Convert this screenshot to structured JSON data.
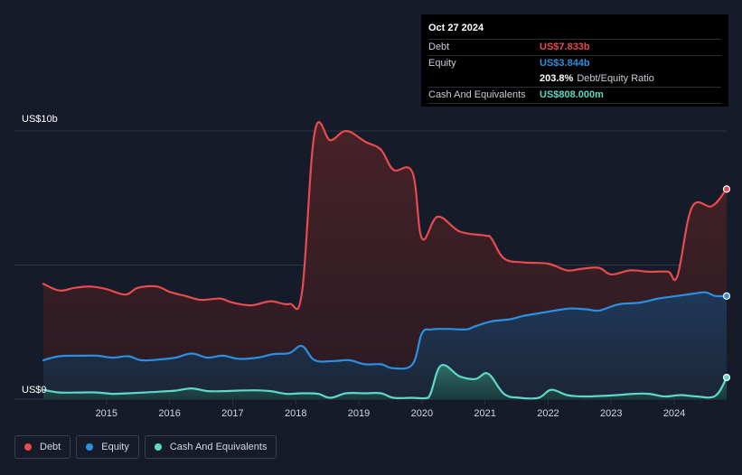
{
  "colors": {
    "background": "#151b28",
    "debt": "#e64b4e",
    "equity": "#2d8fe0",
    "cash": "#5ed8c4",
    "grid": "#2f3542",
    "axis_text": "#d4d7dd"
  },
  "tooltip": {
    "date": "Oct 27 2024",
    "debt_label": "Debt",
    "debt_value": "US$7.833b",
    "equity_label": "Equity",
    "equity_value": "US$3.844b",
    "ratio_value": "203.8%",
    "ratio_label": "Debt/Equity Ratio",
    "cash_label": "Cash And Equivalents",
    "cash_value": "US$808.000m"
  },
  "legend": {
    "debt": "Debt",
    "equity": "Equity",
    "cash": "Cash And Equivalents"
  },
  "chart_data": {
    "type": "area",
    "title": "",
    "ylabel": "",
    "xlabel": "",
    "ylim": [
      0,
      10
    ],
    "y_unit": "US$ billions",
    "y_tick_labels": [
      {
        "value": 10,
        "label": "US$10b"
      },
      {
        "value": 0,
        "label": "US$0"
      }
    ],
    "x_ticks": [
      2015,
      2016,
      2017,
      2018,
      2019,
      2020,
      2021,
      2022,
      2023,
      2024
    ],
    "xlim": [
      2014.0,
      2024.83
    ],
    "series": [
      {
        "name": "Debt",
        "key": "debt",
        "points": [
          [
            2014.0,
            4.3
          ],
          [
            2014.25,
            4.05
          ],
          [
            2014.5,
            4.15
          ],
          [
            2014.75,
            4.2
          ],
          [
            2015.0,
            4.1
          ],
          [
            2015.3,
            3.9
          ],
          [
            2015.5,
            4.15
          ],
          [
            2015.8,
            4.2
          ],
          [
            2016.0,
            4.0
          ],
          [
            2016.25,
            3.85
          ],
          [
            2016.5,
            3.7
          ],
          [
            2016.8,
            3.75
          ],
          [
            2017.0,
            3.6
          ],
          [
            2017.3,
            3.5
          ],
          [
            2017.6,
            3.65
          ],
          [
            2017.9,
            3.55
          ],
          [
            2018.1,
            4.0
          ],
          [
            2018.3,
            9.95
          ],
          [
            2018.55,
            9.65
          ],
          [
            2018.8,
            10.0
          ],
          [
            2019.1,
            9.6
          ],
          [
            2019.35,
            9.3
          ],
          [
            2019.55,
            8.55
          ],
          [
            2019.85,
            8.45
          ],
          [
            2020.0,
            6.0
          ],
          [
            2020.25,
            6.8
          ],
          [
            2020.6,
            6.25
          ],
          [
            2021.0,
            6.1
          ],
          [
            2021.1,
            6.0
          ],
          [
            2021.3,
            5.25
          ],
          [
            2021.6,
            5.1
          ],
          [
            2022.0,
            5.05
          ],
          [
            2022.3,
            4.8
          ],
          [
            2022.5,
            4.85
          ],
          [
            2022.8,
            4.9
          ],
          [
            2023.0,
            4.65
          ],
          [
            2023.3,
            4.8
          ],
          [
            2023.6,
            4.75
          ],
          [
            2023.9,
            4.75
          ],
          [
            2024.05,
            4.6
          ],
          [
            2024.28,
            7.15
          ],
          [
            2024.6,
            7.2
          ],
          [
            2024.83,
            7.833
          ]
        ]
      },
      {
        "name": "Equity",
        "key": "equity",
        "points": [
          [
            2014.0,
            1.45
          ],
          [
            2014.25,
            1.6
          ],
          [
            2014.6,
            1.62
          ],
          [
            2014.85,
            1.62
          ],
          [
            2015.1,
            1.55
          ],
          [
            2015.35,
            1.6
          ],
          [
            2015.55,
            1.45
          ],
          [
            2015.85,
            1.48
          ],
          [
            2016.1,
            1.55
          ],
          [
            2016.35,
            1.7
          ],
          [
            2016.6,
            1.55
          ],
          [
            2016.85,
            1.62
          ],
          [
            2017.1,
            1.5
          ],
          [
            2017.4,
            1.55
          ],
          [
            2017.65,
            1.68
          ],
          [
            2017.9,
            1.72
          ],
          [
            2018.1,
            1.98
          ],
          [
            2018.3,
            1.45
          ],
          [
            2018.6,
            1.42
          ],
          [
            2018.85,
            1.45
          ],
          [
            2019.1,
            1.3
          ],
          [
            2019.35,
            1.3
          ],
          [
            2019.55,
            1.15
          ],
          [
            2019.85,
            1.3
          ],
          [
            2020.0,
            2.45
          ],
          [
            2020.15,
            2.6
          ],
          [
            2020.4,
            2.62
          ],
          [
            2020.7,
            2.6
          ],
          [
            2020.85,
            2.72
          ],
          [
            2021.1,
            2.9
          ],
          [
            2021.4,
            2.98
          ],
          [
            2021.6,
            3.1
          ],
          [
            2021.85,
            3.2
          ],
          [
            2022.1,
            3.3
          ],
          [
            2022.35,
            3.38
          ],
          [
            2022.6,
            3.35
          ],
          [
            2022.8,
            3.3
          ],
          [
            2023.0,
            3.45
          ],
          [
            2023.15,
            3.55
          ],
          [
            2023.45,
            3.6
          ],
          [
            2023.75,
            3.75
          ],
          [
            2024.05,
            3.85
          ],
          [
            2024.35,
            3.95
          ],
          [
            2024.5,
            3.98
          ],
          [
            2024.65,
            3.85
          ],
          [
            2024.83,
            3.844
          ]
        ]
      },
      {
        "name": "Cash And Equivalents",
        "key": "cash",
        "points": [
          [
            2014.0,
            0.35
          ],
          [
            2014.25,
            0.25
          ],
          [
            2014.6,
            0.25
          ],
          [
            2014.85,
            0.25
          ],
          [
            2015.1,
            0.2
          ],
          [
            2015.35,
            0.22
          ],
          [
            2015.6,
            0.25
          ],
          [
            2015.85,
            0.28
          ],
          [
            2016.1,
            0.32
          ],
          [
            2016.35,
            0.4
          ],
          [
            2016.6,
            0.3
          ],
          [
            2016.85,
            0.3
          ],
          [
            2017.1,
            0.32
          ],
          [
            2017.35,
            0.33
          ],
          [
            2017.6,
            0.3
          ],
          [
            2017.85,
            0.2
          ],
          [
            2018.1,
            0.22
          ],
          [
            2018.35,
            0.2
          ],
          [
            2018.55,
            0.05
          ],
          [
            2018.8,
            0.22
          ],
          [
            2019.1,
            0.22
          ],
          [
            2019.35,
            0.22
          ],
          [
            2019.55,
            0.05
          ],
          [
            2019.85,
            0.05
          ],
          [
            2020.1,
            0.05
          ],
          [
            2020.3,
            1.25
          ],
          [
            2020.6,
            0.85
          ],
          [
            2020.85,
            0.75
          ],
          [
            2021.05,
            0.95
          ],
          [
            2021.3,
            0.2
          ],
          [
            2021.55,
            0.05
          ],
          [
            2021.85,
            0.05
          ],
          [
            2022.05,
            0.35
          ],
          [
            2022.3,
            0.15
          ],
          [
            2022.55,
            0.1
          ],
          [
            2022.85,
            0.12
          ],
          [
            2023.1,
            0.15
          ],
          [
            2023.35,
            0.2
          ],
          [
            2023.6,
            0.2
          ],
          [
            2023.85,
            0.1
          ],
          [
            2024.1,
            0.15
          ],
          [
            2024.35,
            0.1
          ],
          [
            2024.65,
            0.12
          ],
          [
            2024.83,
            0.808
          ]
        ]
      }
    ]
  }
}
